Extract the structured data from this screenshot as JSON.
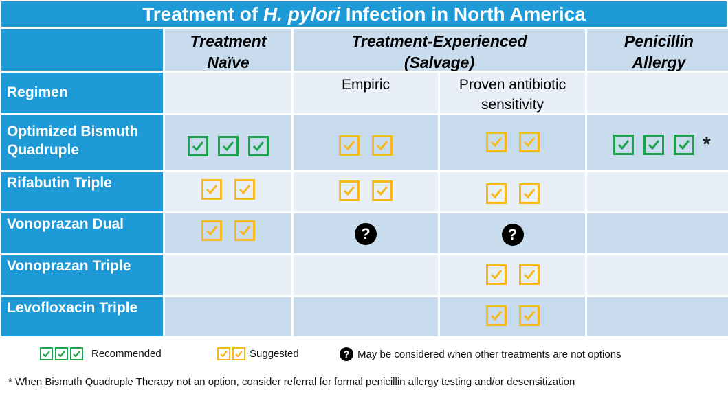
{
  "title": {
    "prefix": "Treatment of ",
    "italic": "H. pylori",
    "suffix": " Infection in North America"
  },
  "columns": {
    "naive_line1": "Treatment",
    "naive_line2": "Naïve",
    "experienced_line1": "Treatment-Experienced",
    "experienced_line2": "(Salvage)",
    "allergy_line1": "Penicillin",
    "allergy_line2": "Allergy",
    "empiric": "Empiric",
    "proven_line1": "Proven antibiotic",
    "proven_line2": "sensitivity"
  },
  "rows": {
    "regimen": "Regimen",
    "bismuth_line1": "Optimized Bismuth",
    "bismuth_line2": "Quadruple",
    "rifabutin": "Rifabutin Triple",
    "vonoprazan_dual": "Vonoprazan Dual",
    "vonoprazan_triple": "Vonoprazan Triple",
    "levofloxacin": "Levofloxacin Triple"
  },
  "cells": {
    "bismuth": {
      "naive": "recommended",
      "empiric": "suggested",
      "proven": "suggested",
      "allergy": "recommended"
    },
    "rifabutin": {
      "naive": "suggested",
      "empiric": "suggested",
      "proven": "suggested",
      "allergy": ""
    },
    "vonoprazan_dual": {
      "naive": "suggested",
      "empiric": "may-be-considered",
      "proven": "may-be-considered",
      "allergy": ""
    },
    "vonoprazan_triple": {
      "naive": "",
      "empiric": "",
      "proven": "suggested",
      "allergy": ""
    },
    "levofloxacin": {
      "naive": "",
      "empiric": "",
      "proven": "suggested",
      "allergy": ""
    }
  },
  "allergy_marker": "*",
  "question_glyph": "?",
  "legend": {
    "recommended": "Recommended",
    "suggested": "Suggested",
    "considered": "May be considered when other treatments are not options"
  },
  "footnote": "* When Bismuth Quadruple Therapy not an option, consider referral for formal penicillin allergy testing and/or desensitization",
  "colors": {
    "header_blue": "#1e9ad6",
    "recommended_green": "#1aa54a",
    "suggested_yellow": "#f8b81c",
    "cell_light": "#e8eff7",
    "cell_mid": "#c9dcee"
  },
  "icons": {
    "recommended": "check-box-icon",
    "suggested": "check-box-icon",
    "considered": "question-circle-icon"
  }
}
